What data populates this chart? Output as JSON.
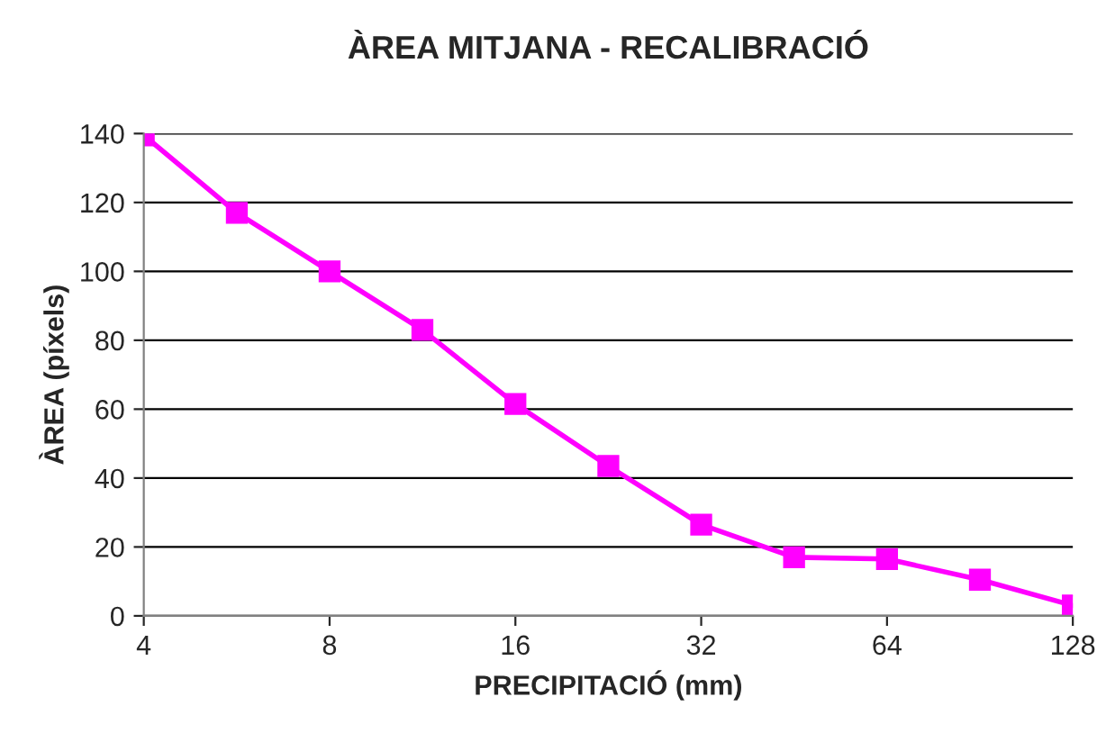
{
  "chart_data": {
    "type": "line",
    "title": "ÀREA MITJANA - RECALIBRACIÓ",
    "xlabel": "PRECIPITACIÓ (mm)",
    "ylabel": "ÀREA (píxels)",
    "x": [
      4,
      5.66,
      8,
      11.31,
      16,
      22.63,
      32,
      45.25,
      64,
      90.51,
      128
    ],
    "series": [
      {
        "color": "#ff00ff",
        "values": [
          139.5,
          117,
          100,
          83,
          61.5,
          43.5,
          26.5,
          17,
          16.5,
          10.5,
          3
        ]
      }
    ],
    "log": "x",
    "xlim": [
      4,
      128
    ],
    "xticks": [
      4,
      8,
      16,
      32,
      64,
      128
    ],
    "ylim": [
      0,
      140
    ],
    "yticks": [
      0,
      20,
      40,
      60,
      80,
      100,
      120,
      140
    ],
    "grid": "y",
    "legend": false,
    "marker": "square",
    "line_style": "solid"
  }
}
